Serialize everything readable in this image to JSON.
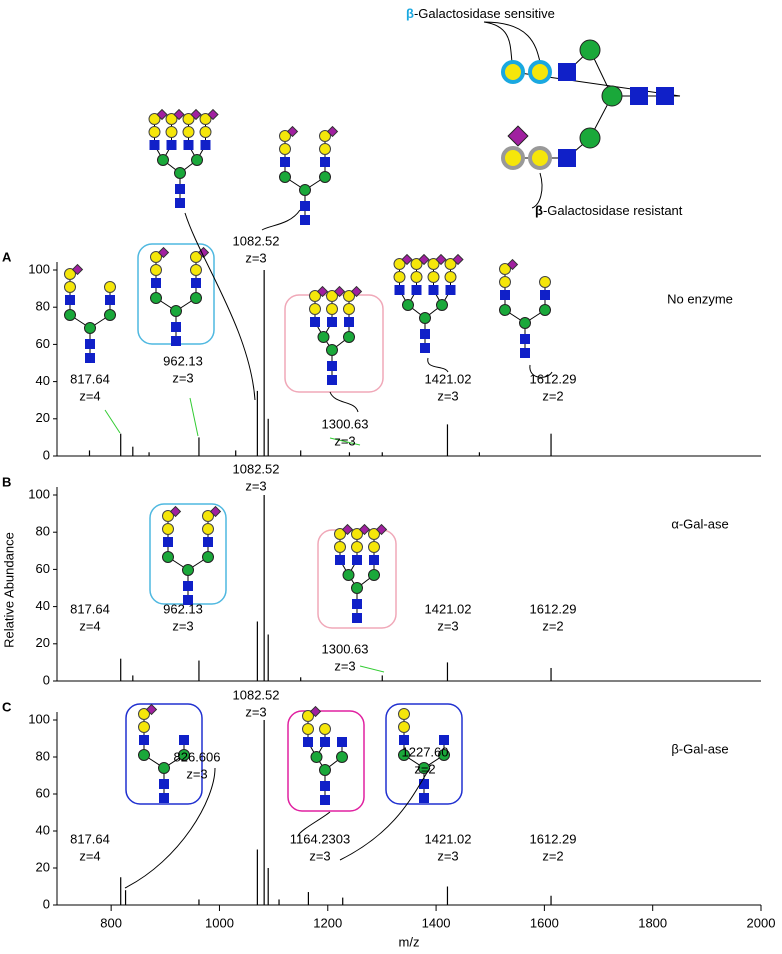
{
  "legend": {
    "sensitive_beta": "β",
    "sensitive_text": "-Galactosidase sensitive",
    "resistant_beta": "β",
    "resistant_text": "-Galactosidase resistant"
  },
  "y_label": "Relative Abundance",
  "x_label": "m/z",
  "chart_data": [
    {
      "type": "stem",
      "panel": "A",
      "title": "No enzyme",
      "color": "#000000",
      "xlim": [
        700,
        2000
      ],
      "ylim": [
        0,
        100
      ],
      "yticks": [
        0,
        20,
        40,
        60,
        80,
        100
      ],
      "x": [
        760,
        817.64,
        840,
        870,
        962.13,
        1030,
        1070,
        1082.52,
        1090,
        1150,
        1240,
        1300.63,
        1421.02,
        1480,
        1612.29
      ],
      "values": [
        3,
        12,
        5,
        2,
        10,
        3,
        35,
        100,
        20,
        3,
        2,
        2,
        17,
        2,
        12
      ],
      "peak_labels": [
        {
          "mz": "817.64",
          "z": "z=4"
        },
        {
          "mz": "962.13",
          "z": "z=3"
        },
        {
          "mz": "1082.52",
          "z": "z=3"
        },
        {
          "mz": "1300.63",
          "z": "z=3"
        },
        {
          "mz": "1421.02",
          "z": "z=3"
        },
        {
          "mz": "1612.29",
          "z": "z=2"
        }
      ]
    },
    {
      "type": "stem",
      "panel": "B",
      "title": "α-Gal-ase",
      "color": "#000000",
      "xlim": [
        700,
        2000
      ],
      "ylim": [
        0,
        100
      ],
      "yticks": [
        0,
        20,
        40,
        60,
        80,
        100
      ],
      "x": [
        817.64,
        840,
        962.13,
        1070,
        1082.52,
        1090,
        1150,
        1300.63,
        1421.02,
        1612.29
      ],
      "values": [
        12,
        3,
        11,
        32,
        100,
        25,
        2,
        3,
        10,
        7
      ],
      "peak_labels": [
        {
          "mz": "817.64",
          "z": "z=4"
        },
        {
          "mz": "962.13",
          "z": "z=3"
        },
        {
          "mz": "1082.52",
          "z": "z=3"
        },
        {
          "mz": "1300.63",
          "z": "z=3"
        },
        {
          "mz": "1421.02",
          "z": "z=3"
        },
        {
          "mz": "1612.29",
          "z": "z=2"
        }
      ]
    },
    {
      "type": "stem",
      "panel": "C",
      "title": "β-Gal-ase",
      "color": "#000000",
      "xlim": [
        700,
        2000
      ],
      "ylim": [
        0,
        100
      ],
      "yticks": [
        0,
        20,
        40,
        60,
        80,
        100
      ],
      "xticks": [
        800,
        1000,
        1200,
        1400,
        1600,
        1800,
        2000
      ],
      "x": [
        817.64,
        826.606,
        962.13,
        1070,
        1082.52,
        1090,
        1110,
        1164.2303,
        1227.6,
        1421.02,
        1612.29
      ],
      "values": [
        15,
        8,
        3,
        30,
        100,
        20,
        3,
        7,
        4,
        10,
        5
      ],
      "peak_labels": [
        {
          "mz": "817.64",
          "z": "z=4"
        },
        {
          "mz": "826.606",
          "z": "z=3"
        },
        {
          "mz": "1082.52",
          "z": "z=3"
        },
        {
          "mz": "1164.2303",
          "z": "z=3"
        },
        {
          "mz": "1227.60",
          "z": "z=2"
        },
        {
          "mz": "1421.02",
          "z": "z=3"
        },
        {
          "mz": "1612.29",
          "z": "z=2"
        }
      ]
    }
  ]
}
